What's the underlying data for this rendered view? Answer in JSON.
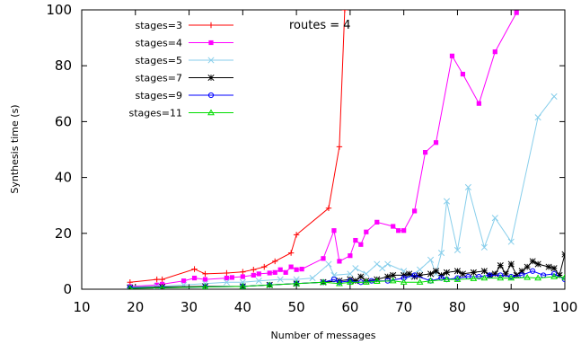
{
  "chart_data": {
    "type": "line",
    "xlabel": "Number of messages",
    "ylabel": "Synthesis time (s)",
    "xlim": [
      10,
      100
    ],
    "ylim": [
      0,
      100
    ],
    "xticks": [
      10,
      20,
      30,
      40,
      50,
      60,
      70,
      80,
      90,
      100
    ],
    "yticks": [
      0,
      20,
      40,
      60,
      80,
      100
    ],
    "grid": false,
    "legend_position": "top-left",
    "annotation": "routes = 4",
    "series": [
      {
        "name": "stages=3",
        "color": "#ff0000",
        "marker": "plus",
        "points": [
          [
            19,
            2.5
          ],
          [
            24,
            3.5
          ],
          [
            25,
            3.5
          ],
          [
            31,
            7.2
          ],
          [
            33,
            5.5
          ],
          [
            37,
            5.8
          ],
          [
            40,
            6.2
          ],
          [
            42,
            7.0
          ],
          [
            44,
            8.0
          ],
          [
            46,
            10.0
          ],
          [
            49,
            13.0
          ],
          [
            50,
            19.5
          ],
          [
            56,
            29.0
          ],
          [
            58,
            51.0
          ],
          [
            59,
            100.0
          ]
        ]
      },
      {
        "name": "stages=4",
        "color": "#ff00ff",
        "marker": "filled-square",
        "points": [
          [
            19,
            1.0
          ],
          [
            24,
            1.5
          ],
          [
            25,
            1.8
          ],
          [
            29,
            3.0
          ],
          [
            31,
            4.0
          ],
          [
            33,
            3.5
          ],
          [
            37,
            4.0
          ],
          [
            38,
            4.2
          ],
          [
            40,
            4.5
          ],
          [
            42,
            5.0
          ],
          [
            43,
            5.5
          ],
          [
            45,
            5.8
          ],
          [
            46,
            6.0
          ],
          [
            47,
            7.0
          ],
          [
            48,
            6.0
          ],
          [
            49,
            8.0
          ],
          [
            50,
            7.0
          ],
          [
            51,
            7.2
          ],
          [
            55,
            11.0
          ],
          [
            57,
            21.0
          ],
          [
            58,
            10.0
          ],
          [
            60,
            12.0
          ],
          [
            61,
            17.5
          ],
          [
            62,
            16.0
          ],
          [
            63,
            20.5
          ],
          [
            65,
            24.0
          ],
          [
            68,
            22.5
          ],
          [
            69,
            21.0
          ],
          [
            70,
            21.0
          ],
          [
            72,
            28.0
          ],
          [
            74,
            49.0
          ],
          [
            76,
            52.5
          ],
          [
            79,
            83.5
          ],
          [
            81,
            77.0
          ],
          [
            84,
            66.5
          ],
          [
            87,
            85.0
          ],
          [
            91,
            99.0
          ]
        ]
      },
      {
        "name": "stages=5",
        "color": "#87ceeb",
        "marker": "x",
        "points": [
          [
            19,
            0.8
          ],
          [
            24,
            1.0
          ],
          [
            29,
            1.5
          ],
          [
            33,
            2.0
          ],
          [
            37,
            2.5
          ],
          [
            40,
            2.5
          ],
          [
            43,
            3.0
          ],
          [
            47,
            3.5
          ],
          [
            50,
            3.5
          ],
          [
            53,
            4.0
          ],
          [
            56,
            9.0
          ],
          [
            57,
            5.0
          ],
          [
            60,
            5.5
          ],
          [
            61,
            7.5
          ],
          [
            63,
            5.5
          ],
          [
            65,
            9.0
          ],
          [
            66,
            7.5
          ],
          [
            67,
            9.0
          ],
          [
            70,
            6.5
          ],
          [
            71,
            4.5
          ],
          [
            73,
            7.0
          ],
          [
            75,
            10.5
          ],
          [
            76,
            5.5
          ],
          [
            77,
            13.0
          ],
          [
            78,
            31.5
          ],
          [
            80,
            14.0
          ],
          [
            82,
            36.5
          ],
          [
            85,
            15.0
          ],
          [
            87,
            25.5
          ],
          [
            90,
            17.0
          ],
          [
            95,
            61.5
          ],
          [
            98,
            69.0
          ]
        ]
      },
      {
        "name": "stages=7",
        "color": "#000000",
        "marker": "star",
        "points": [
          [
            19,
            0.5
          ],
          [
            25,
            0.8
          ],
          [
            33,
            1.0
          ],
          [
            40,
            1.0
          ],
          [
            45,
            1.5
          ],
          [
            50,
            2.0
          ],
          [
            55,
            2.5
          ],
          [
            58,
            3.0
          ],
          [
            60,
            3.5
          ],
          [
            61,
            3.0
          ],
          [
            62,
            4.5
          ],
          [
            63,
            3.0
          ],
          [
            65,
            3.5
          ],
          [
            67,
            4.5
          ],
          [
            68,
            5.0
          ],
          [
            70,
            5.0
          ],
          [
            71,
            5.5
          ],
          [
            72,
            4.5
          ],
          [
            73,
            5.0
          ],
          [
            75,
            5.5
          ],
          [
            76,
            6.5
          ],
          [
            77,
            5.0
          ],
          [
            78,
            6.0
          ],
          [
            80,
            6.5
          ],
          [
            81,
            5.5
          ],
          [
            83,
            6.0
          ],
          [
            85,
            6.5
          ],
          [
            86,
            5.0
          ],
          [
            87,
            5.5
          ],
          [
            88,
            8.5
          ],
          [
            89,
            5.5
          ],
          [
            90,
            9.0
          ],
          [
            91,
            5.0
          ],
          [
            92,
            6.5
          ],
          [
            93,
            8.0
          ],
          [
            94,
            10.0
          ],
          [
            95,
            9.0
          ],
          [
            97,
            8.0
          ],
          [
            98,
            7.5
          ],
          [
            99,
            5.0
          ],
          [
            100,
            12.5
          ]
        ]
      },
      {
        "name": "stages=9",
        "color": "#0000ff",
        "marker": "circle",
        "points": [
          [
            19,
            0.5
          ],
          [
            25,
            0.5
          ],
          [
            33,
            0.8
          ],
          [
            40,
            1.0
          ],
          [
            45,
            1.5
          ],
          [
            50,
            2.0
          ],
          [
            55,
            2.5
          ],
          [
            57,
            3.5
          ],
          [
            58,
            2.5
          ],
          [
            60,
            3.0
          ],
          [
            62,
            2.5
          ],
          [
            64,
            3.0
          ],
          [
            67,
            3.0
          ],
          [
            70,
            4.0
          ],
          [
            72,
            5.0
          ],
          [
            75,
            3.0
          ],
          [
            77,
            4.0
          ],
          [
            78,
            3.5
          ],
          [
            80,
            4.0
          ],
          [
            82,
            4.5
          ],
          [
            84,
            4.5
          ],
          [
            86,
            5.0
          ],
          [
            88,
            5.0
          ],
          [
            90,
            4.5
          ],
          [
            92,
            5.0
          ],
          [
            94,
            6.5
          ],
          [
            96,
            5.0
          ],
          [
            98,
            5.5
          ],
          [
            100,
            3.5
          ]
        ]
      },
      {
        "name": "stages=11",
        "color": "#00dd00",
        "marker": "triangle",
        "points": [
          [
            19,
            0.3
          ],
          [
            25,
            0.5
          ],
          [
            33,
            0.8
          ],
          [
            40,
            1.0
          ],
          [
            45,
            1.5
          ],
          [
            50,
            2.0
          ],
          [
            55,
            2.5
          ],
          [
            58,
            2.0
          ],
          [
            60,
            2.5
          ],
          [
            63,
            2.5
          ],
          [
            65,
            2.8
          ],
          [
            68,
            3.0
          ],
          [
            70,
            2.5
          ],
          [
            73,
            2.5
          ],
          [
            75,
            3.0
          ],
          [
            78,
            3.5
          ],
          [
            80,
            3.5
          ],
          [
            83,
            3.8
          ],
          [
            85,
            4.0
          ],
          [
            88,
            4.0
          ],
          [
            90,
            4.0
          ],
          [
            93,
            4.2
          ],
          [
            95,
            4.0
          ],
          [
            98,
            4.5
          ],
          [
            100,
            4.2
          ]
        ]
      }
    ]
  }
}
